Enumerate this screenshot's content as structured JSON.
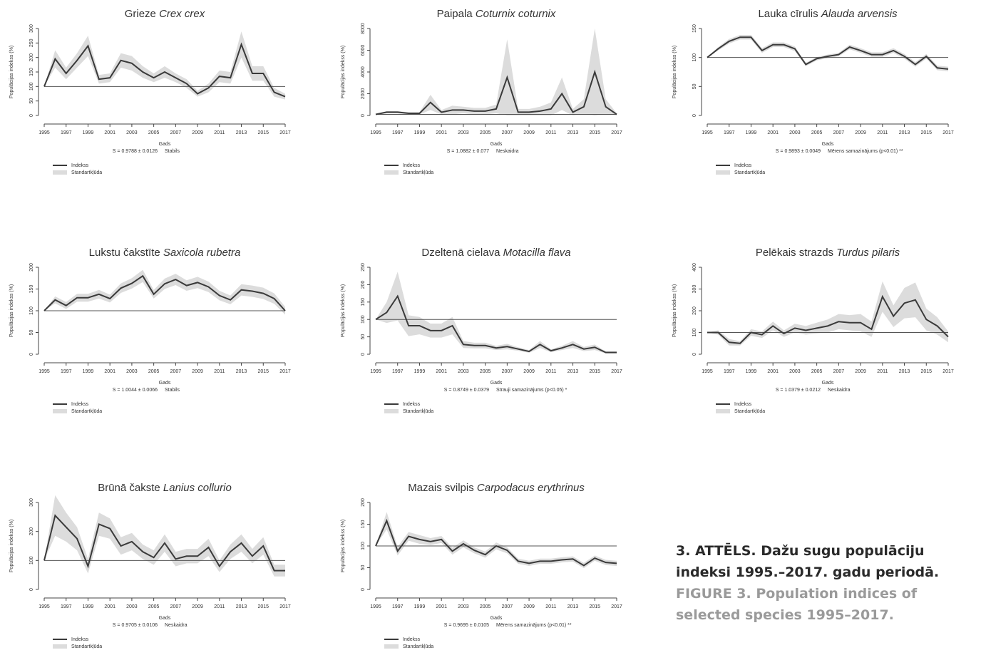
{
  "charts": [
    {
      "type": "line",
      "title": "Grieze",
      "title_italic": "Crex crex",
      "xlabel": "Gads",
      "ylabel": "Populācijas indekss (%)",
      "stat": "S = 0.9788 ± 0.0126",
      "trend": "Stabils",
      "x": [
        1995,
        1996,
        1997,
        1998,
        1999,
        2000,
        2001,
        2002,
        2003,
        2004,
        2005,
        2006,
        2007,
        2008,
        2009,
        2010,
        2011,
        2012,
        2013,
        2014,
        2015,
        2016,
        2017
      ],
      "xlim": [
        1995,
        2017
      ],
      "xticks": [
        1995,
        1997,
        1999,
        2001,
        2003,
        2005,
        2007,
        2009,
        2011,
        2013,
        2015,
        2017
      ],
      "ylim": [
        0,
        300
      ],
      "yticks": [
        0,
        50,
        100,
        150,
        200,
        250,
        300
      ],
      "reference": 100,
      "series": [
        {
          "name": "Indekss",
          "color": "#3a3a3a",
          "values": [
            100,
            195,
            145,
            190,
            240,
            125,
            130,
            190,
            180,
            150,
            130,
            150,
            130,
            110,
            75,
            95,
            135,
            130,
            245,
            145,
            145,
            80,
            65
          ]
        }
      ],
      "band": {
        "name": "Standartkļūda",
        "color": "#dcdcdc",
        "errors": [
          0,
          30,
          20,
          25,
          35,
          15,
          15,
          25,
          25,
          20,
          15,
          20,
          15,
          15,
          10,
          15,
          20,
          20,
          45,
          25,
          25,
          15,
          10
        ]
      }
    },
    {
      "type": "line",
      "title": "Paipala",
      "title_italic": "Coturnix coturnix",
      "xlabel": "Gads",
      "ylabel": "Populācijas indekss (%)",
      "stat": "S = 1.0882 ± 0.077",
      "trend": "Neskaidra",
      "x": [
        1995,
        1996,
        1997,
        1998,
        1999,
        2000,
        2001,
        2002,
        2003,
        2004,
        2005,
        2006,
        2007,
        2008,
        2009,
        2010,
        2011,
        2012,
        2013,
        2014,
        2015,
        2016,
        2017
      ],
      "xlim": [
        1995,
        2017
      ],
      "xticks": [
        1995,
        1997,
        1999,
        2001,
        2003,
        2005,
        2007,
        2009,
        2011,
        2013,
        2015,
        2017
      ],
      "ylim": [
        0,
        8000
      ],
      "yticks": [
        0,
        2000,
        4000,
        6000,
        8000
      ],
      "reference": 100,
      "series": [
        {
          "name": "Indekss",
          "color": "#3a3a3a",
          "values": [
            100,
            300,
            300,
            200,
            200,
            1200,
            300,
            500,
            500,
            400,
            400,
            600,
            3500,
            300,
            300,
            400,
            600,
            2000,
            300,
            800,
            4000,
            800,
            100
          ]
        }
      ],
      "band": {
        "name": "Standartkļūda",
        "color": "#dcdcdc",
        "errors": [
          50,
          100,
          100,
          100,
          100,
          700,
          200,
          400,
          300,
          300,
          300,
          400,
          3500,
          300,
          300,
          400,
          600,
          1500,
          300,
          700,
          4000,
          700,
          100
        ]
      }
    },
    {
      "type": "line",
      "title": "Lauka cīrulis",
      "title_italic": "Alauda arvensis",
      "xlabel": "Gads",
      "ylabel": "Populācijas indekss (%)",
      "stat": "S = 0.9893 ± 0.0049",
      "trend": "Mērens samazinājums (p<0.01) **",
      "x": [
        1995,
        1996,
        1997,
        1998,
        1999,
        2000,
        2001,
        2002,
        2003,
        2004,
        2005,
        2006,
        2007,
        2008,
        2009,
        2010,
        2011,
        2012,
        2013,
        2014,
        2015,
        2016,
        2017
      ],
      "xlim": [
        1995,
        2017
      ],
      "xticks": [
        1995,
        1997,
        1999,
        2001,
        2003,
        2005,
        2007,
        2009,
        2011,
        2013,
        2015,
        2017
      ],
      "ylim": [
        0,
        150
      ],
      "yticks": [
        0,
        50,
        100,
        150
      ],
      "reference": 100,
      "series": [
        {
          "name": "Indekss",
          "color": "#3a3a3a",
          "values": [
            100,
            115,
            128,
            135,
            135,
            112,
            122,
            122,
            115,
            88,
            98,
            102,
            105,
            118,
            112,
            105,
            105,
            112,
            102,
            88,
            102,
            82,
            80
          ]
        }
      ],
      "band": {
        "name": "Standartkļūda",
        "color": "#dcdcdc",
        "errors": [
          0,
          3,
          4,
          4,
          4,
          4,
          4,
          4,
          4,
          3,
          3,
          3,
          3,
          4,
          4,
          4,
          4,
          4,
          4,
          4,
          4,
          4,
          4
        ]
      }
    },
    {
      "type": "line",
      "title": "Lukstu čakstīte",
      "title_italic": "Saxicola rubetra",
      "xlabel": "Gads",
      "ylabel": "Populācijas indekss (%)",
      "stat": "S = 1.0044 ± 0.0066",
      "trend": "Stabils",
      "x": [
        1995,
        1996,
        1997,
        1998,
        1999,
        2000,
        2001,
        2002,
        2003,
        2004,
        2005,
        2006,
        2007,
        2008,
        2009,
        2010,
        2011,
        2012,
        2013,
        2014,
        2015,
        2016,
        2017
      ],
      "xlim": [
        1995,
        2017
      ],
      "xticks": [
        1995,
        1997,
        1999,
        2001,
        2003,
        2005,
        2007,
        2009,
        2011,
        2013,
        2015,
        2017
      ],
      "ylim": [
        0,
        200
      ],
      "yticks": [
        0,
        50,
        100,
        150,
        200
      ],
      "reference": 100,
      "series": [
        {
          "name": "Indekss",
          "color": "#3a3a3a",
          "values": [
            100,
            125,
            112,
            130,
            130,
            138,
            128,
            152,
            163,
            180,
            138,
            162,
            172,
            158,
            165,
            155,
            135,
            125,
            148,
            145,
            140,
            128,
            100
          ]
        }
      ],
      "band": {
        "name": "Standartkļūda",
        "color": "#dcdcdc",
        "errors": [
          0,
          8,
          8,
          9,
          9,
          10,
          9,
          11,
          12,
          14,
          10,
          12,
          13,
          12,
          13,
          12,
          11,
          10,
          13,
          13,
          13,
          12,
          9
        ]
      }
    },
    {
      "type": "line",
      "title": "Dzeltenā cielava",
      "title_italic": "Motacilla flava",
      "xlabel": "Gads",
      "ylabel": "Populācijas indekss (%)",
      "stat": "S = 0.8749 ± 0.0379",
      "trend": "Strauji samazinājums (p<0.05) *",
      "x": [
        1995,
        1996,
        1997,
        1998,
        1999,
        2000,
        2001,
        2002,
        2003,
        2004,
        2005,
        2006,
        2007,
        2008,
        2009,
        2010,
        2011,
        2012,
        2013,
        2014,
        2015,
        2016,
        2017
      ],
      "xlim": [
        1995,
        2017
      ],
      "xticks": [
        1995,
        1997,
        1999,
        2001,
        2003,
        2005,
        2007,
        2009,
        2011,
        2013,
        2015,
        2017
      ],
      "ylim": [
        0,
        250
      ],
      "yticks": [
        0,
        50,
        100,
        150,
        200,
        250
      ],
      "reference": 100,
      "series": [
        {
          "name": "Indekss",
          "color": "#3a3a3a",
          "values": [
            100,
            120,
            167,
            82,
            82,
            68,
            68,
            82,
            28,
            25,
            25,
            18,
            22,
            15,
            8,
            28,
            10,
            18,
            28,
            15,
            20,
            5,
            5
          ]
        }
      ],
      "band": {
        "name": "Standartkļūda",
        "color": "#dcdcdc",
        "errors": [
          0,
          30,
          70,
          30,
          25,
          20,
          20,
          25,
          10,
          8,
          8,
          6,
          8,
          5,
          4,
          10,
          4,
          6,
          10,
          6,
          8,
          3,
          3
        ]
      }
    },
    {
      "type": "line",
      "title": "Pelēkais strazds",
      "title_italic": "Turdus pilaris",
      "xlabel": "Gads",
      "ylabel": "Populācijas indekss (%)",
      "stat": "S = 1.0379 ± 0.0212",
      "trend": "Neskaidra",
      "x": [
        1995,
        1996,
        1997,
        1998,
        1999,
        2000,
        2001,
        2002,
        2003,
        2004,
        2005,
        2006,
        2007,
        2008,
        2009,
        2010,
        2011,
        2012,
        2013,
        2014,
        2015,
        2016,
        2017
      ],
      "xlim": [
        1995,
        2017
      ],
      "xticks": [
        1995,
        1997,
        1999,
        2001,
        2003,
        2005,
        2007,
        2009,
        2011,
        2013,
        2015,
        2017
      ],
      "ylim": [
        0,
        400
      ],
      "yticks": [
        0,
        100,
        200,
        300,
        400
      ],
      "reference": 100,
      "series": [
        {
          "name": "Indekss",
          "color": "#3a3a3a",
          "values": [
            100,
            100,
            55,
            50,
            100,
            90,
            130,
            95,
            120,
            110,
            120,
            130,
            150,
            145,
            145,
            115,
            265,
            175,
            235,
            250,
            160,
            130,
            80
          ]
        }
      ],
      "band": {
        "name": "Standartkļūda",
        "color": "#dcdcdc",
        "errors": [
          0,
          10,
          15,
          10,
          15,
          15,
          20,
          15,
          20,
          20,
          25,
          30,
          35,
          35,
          40,
          35,
          70,
          50,
          70,
          80,
          50,
          40,
          25
        ]
      }
    },
    {
      "type": "line",
      "title": "Brūnā čakste",
      "title_italic": "Lanius collurio",
      "xlabel": "Gads",
      "ylabel": "Populācijas indekss (%)",
      "stat": "S = 0.9705 ± 0.0106",
      "trend": "Neskaidra",
      "x": [
        1995,
        1996,
        1997,
        1998,
        1999,
        2000,
        2001,
        2002,
        2003,
        2004,
        2005,
        2006,
        2007,
        2008,
        2009,
        2010,
        2011,
        2012,
        2013,
        2014,
        2015,
        2016,
        2017
      ],
      "xlim": [
        1995,
        2017
      ],
      "xticks": [
        1995,
        1997,
        1999,
        2001,
        2003,
        2005,
        2007,
        2009,
        2011,
        2013,
        2015,
        2017
      ],
      "ylim": [
        0,
        300
      ],
      "yticks": [
        0,
        100,
        200,
        300
      ],
      "reference": 100,
      "series": [
        {
          "name": "Indekss",
          "color": "#3a3a3a",
          "values": [
            100,
            255,
            215,
            175,
            80,
            225,
            210,
            150,
            165,
            130,
            110,
            160,
            105,
            115,
            115,
            145,
            80,
            130,
            160,
            115,
            150,
            65,
            65
          ]
        }
      ],
      "band": {
        "name": "Standartkļūda",
        "color": "#dcdcdc",
        "errors": [
          0,
          70,
          50,
          40,
          25,
          40,
          35,
          30,
          30,
          25,
          25,
          30,
          25,
          25,
          25,
          30,
          20,
          25,
          30,
          25,
          30,
          20,
          20
        ]
      }
    },
    {
      "type": "line",
      "title": "Mazais svilpis",
      "title_italic": "Carpodacus erythrinus",
      "xlabel": "Gads",
      "ylabel": "Populācijas indekss (%)",
      "stat": "S = 0.9695 ± 0.0105",
      "trend": "Mērens samazinājums (p<0.01) **",
      "x": [
        1995,
        1996,
        1997,
        1998,
        1999,
        2000,
        2001,
        2002,
        2003,
        2004,
        2005,
        2006,
        2007,
        2008,
        2009,
        2010,
        2011,
        2012,
        2013,
        2014,
        2015,
        2016,
        2017
      ],
      "xlim": [
        1995,
        2017
      ],
      "xticks": [
        1995,
        1997,
        1999,
        2001,
        2003,
        2005,
        2007,
        2009,
        2011,
        2013,
        2015,
        2017
      ],
      "ylim": [
        0,
        200
      ],
      "yticks": [
        0,
        50,
        100,
        150,
        200
      ],
      "reference": 100,
      "series": [
        {
          "name": "Indekss",
          "color": "#3a3a3a",
          "values": [
            100,
            158,
            88,
            122,
            115,
            110,
            115,
            88,
            105,
            90,
            80,
            100,
            90,
            65,
            60,
            65,
            65,
            68,
            70,
            55,
            72,
            62,
            60
          ]
        }
      ],
      "band": {
        "name": "Standartkļūda",
        "color": "#dcdcdc",
        "errors": [
          0,
          20,
          10,
          10,
          10,
          8,
          8,
          8,
          8,
          7,
          7,
          8,
          7,
          6,
          6,
          6,
          6,
          6,
          6,
          6,
          6,
          6,
          6
        ]
      }
    }
  ],
  "caption": {
    "lv": "3. ATTĒLS. Dažu sugu populāciju indeksi 1995.–2017. gadu periodā.",
    "en": "FIGURE 3. Population indices of selected species 1995–2017."
  }
}
